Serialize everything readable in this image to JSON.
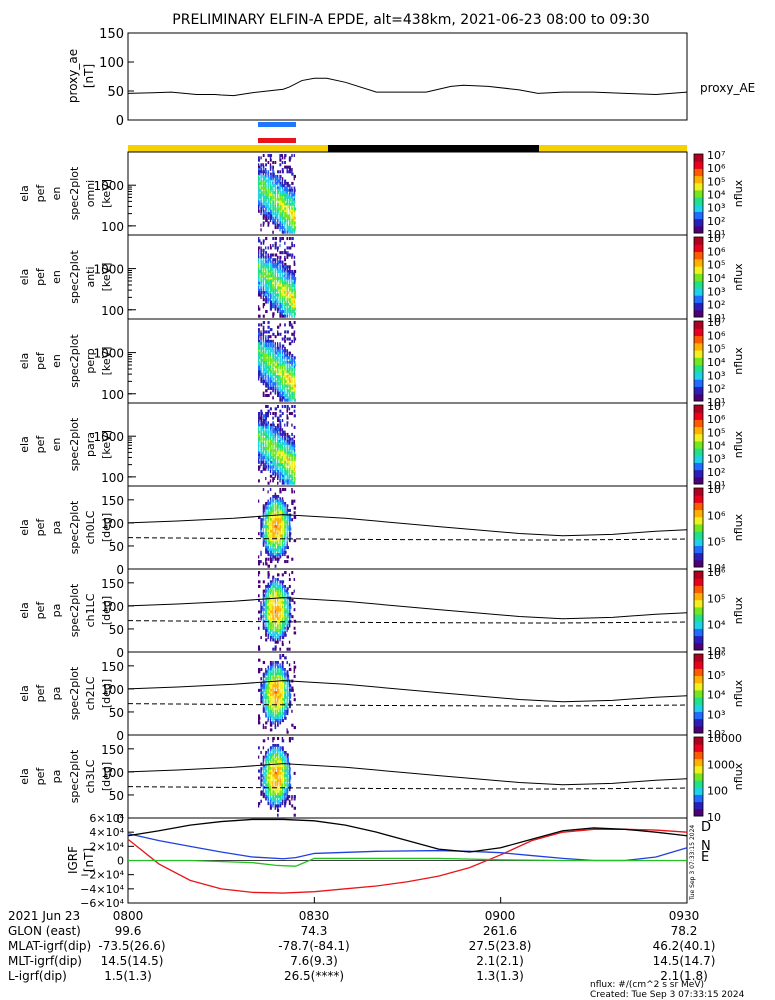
{
  "title": "PRELIMINARY ELFIN-A EPDE, alt=438km, 2021-06-23 08:00 to 09:30",
  "colors": {
    "orbit_yellow": "#f7d000",
    "orbit_black": "#000000",
    "bar_blue": "#1f77ff",
    "bar_red": "#e8141a",
    "grf_d": "#e8141a",
    "grf_n": "#1f3fe0",
    "grf_e": "#22c022"
  },
  "chart_data": [
    {
      "type": "line",
      "id": "ae",
      "ylabel": "proxy_ae\n[nT]",
      "legend": "proxy_AE",
      "ylim": [
        0,
        150
      ],
      "yticks": [
        "150",
        "100",
        "50",
        "0"
      ],
      "series": [
        {
          "name": "proxy_AE",
          "x": [
            0,
            4,
            7,
            11,
            14,
            15,
            17,
            20,
            25,
            26,
            28,
            30,
            32,
            35,
            40,
            43,
            48,
            52,
            54,
            58,
            63,
            66,
            70,
            75,
            80,
            85,
            90
          ],
          "y": [
            46,
            47,
            48,
            44,
            44,
            43,
            42,
            47,
            53,
            57,
            68,
            72,
            72,
            65,
            48,
            48,
            48,
            58,
            60,
            58,
            52,
            46,
            48,
            48,
            46,
            44,
            48
          ]
        }
      ]
    },
    {
      "type": "heatmap",
      "id": "omni",
      "ylabel": [
        "ela",
        "pef",
        "en",
        "spec2plot",
        "omni",
        "[keV]"
      ],
      "yticks": [
        "1000",
        "100"
      ],
      "cbar_ticks": [
        "10⁷",
        "10⁶",
        "10⁵",
        "10⁴",
        "10³",
        "10²",
        "10¹"
      ],
      "cbar_label": "nflux"
    },
    {
      "type": "heatmap",
      "id": "anti",
      "ylabel": [
        "ela",
        "pef",
        "en",
        "spec2plot",
        "anti",
        "[keV]"
      ],
      "yticks": [
        "1000",
        "100"
      ],
      "cbar_ticks": [
        "10⁷",
        "10⁶",
        "10⁵",
        "10⁴",
        "10³",
        "10²",
        "10¹"
      ],
      "cbar_label": "nflux"
    },
    {
      "type": "heatmap",
      "id": "perp",
      "ylabel": [
        "ela",
        "pef",
        "en",
        "spec2plot",
        "perp",
        "[keV]"
      ],
      "yticks": [
        "1000",
        "100"
      ],
      "cbar_ticks": [
        "10⁷",
        "10⁶",
        "10⁵",
        "10⁴",
        "10³",
        "10²",
        "10¹"
      ],
      "cbar_label": "nflux"
    },
    {
      "type": "heatmap",
      "id": "para",
      "ylabel": [
        "ela",
        "pef",
        "en",
        "spec2plot",
        "para",
        "[keV]"
      ],
      "yticks": [
        "1000",
        "100"
      ],
      "cbar_ticks": [
        "10⁷",
        "10⁶",
        "10⁵",
        "10⁴",
        "10³",
        "10²",
        "10¹"
      ],
      "cbar_label": "nflux"
    },
    {
      "type": "heatmap",
      "id": "ch0",
      "ylabel": [
        "ela",
        "pef",
        "pa",
        "spec2plot",
        "ch0LC",
        "[deg]"
      ],
      "yticks": [
        "150",
        "100",
        "50",
        "0"
      ],
      "cbar_ticks": [
        "10⁷",
        "10⁶",
        "10⁵",
        "10⁴"
      ],
      "cbar_label": "nflux"
    },
    {
      "type": "heatmap",
      "id": "ch1",
      "ylabel": [
        "ela",
        "pef",
        "pa",
        "spec2plot",
        "ch1LC",
        "[deg]"
      ],
      "yticks": [
        "150",
        "100",
        "50",
        "0"
      ],
      "cbar_ticks": [
        "10⁶",
        "10⁵",
        "10⁴",
        "10³"
      ],
      "cbar_label": "nflux"
    },
    {
      "type": "heatmap",
      "id": "ch2",
      "ylabel": [
        "ela",
        "pef",
        "pa",
        "spec2plot",
        "ch2LC",
        "[deg]"
      ],
      "yticks": [
        "150",
        "100",
        "50",
        "0"
      ],
      "cbar_ticks": [
        "10⁶",
        "10⁵",
        "10⁴",
        "10³",
        "10²"
      ],
      "cbar_label": "nflux"
    },
    {
      "type": "heatmap",
      "id": "ch3",
      "ylabel": [
        "ela",
        "pef",
        "pa",
        "spec2plot",
        "ch3LC",
        "[deg]"
      ],
      "yticks": [
        "150",
        "100",
        "50",
        "0"
      ],
      "cbar_ticks": [
        "10000",
        "1000",
        "100",
        "10"
      ],
      "cbar_label": "nflux"
    },
    {
      "type": "line",
      "id": "grf",
      "ylabel": "IGRF\n[nT]",
      "ylim": [
        -60000,
        60000
      ],
      "yticks": [
        "6×10⁴",
        "4×10⁴",
        "2×10⁴",
        "0",
        "−2×10⁴",
        "−4×10⁴",
        "−6×10⁴"
      ],
      "series": [
        {
          "name": "D",
          "color": "#e8141a",
          "x": [
            0,
            5,
            10,
            15,
            20,
            25,
            30,
            35,
            40,
            45,
            50,
            55,
            60,
            65,
            70,
            75,
            80,
            85,
            90
          ],
          "y": [
            30000,
            -5000,
            -28000,
            -40000,
            -45000,
            -46000,
            -44000,
            -40000,
            -36000,
            -30000,
            -22000,
            -10000,
            8000,
            28000,
            40000,
            44000,
            44000,
            43000,
            40000
          ]
        },
        {
          "name": "N",
          "color": "#1f3fe0",
          "x": [
            0,
            5,
            10,
            15,
            20,
            25,
            27,
            30,
            40,
            50,
            55,
            60,
            65,
            70,
            75,
            80,
            85,
            90
          ],
          "y": [
            38000,
            28000,
            20000,
            12000,
            5000,
            2500,
            4000,
            10000,
            13000,
            14000,
            13000,
            11000,
            7000,
            3000,
            0,
            0,
            5000,
            18000
          ]
        },
        {
          "name": "E",
          "color": "#22c022",
          "x": [
            0,
            10,
            20,
            24,
            27,
            30,
            40,
            50,
            60,
            70,
            80,
            90
          ],
          "y": [
            0,
            0,
            -3000,
            -7000,
            -8000,
            3000,
            3000,
            3000,
            1000,
            0,
            0,
            0
          ]
        },
        {
          "name": "",
          "color": "#000000",
          "x": [
            0,
            5,
            10,
            15,
            20,
            25,
            30,
            35,
            40,
            45,
            50,
            55,
            60,
            65,
            70,
            75,
            80,
            85,
            90
          ],
          "y": [
            35000,
            42000,
            50000,
            55000,
            58000,
            58000,
            56000,
            50000,
            40000,
            28000,
            16000,
            12000,
            18000,
            30000,
            42000,
            46000,
            44000,
            40000,
            35000
          ]
        }
      ]
    }
  ],
  "pa_lines": {
    "solid": {
      "x": [
        0,
        8,
        17,
        25,
        35,
        50,
        63,
        70,
        78,
        85,
        90
      ],
      "y": [
        100,
        104,
        110,
        118,
        110,
        92,
        77,
        72,
        75,
        82,
        85
      ]
    },
    "dashed": {
      "x": [
        0,
        20,
        40,
        63,
        70,
        80,
        90
      ],
      "y": [
        68,
        66,
        64,
        63,
        63,
        64,
        65
      ]
    }
  },
  "grf_side_labels": [
    "D",
    "N",
    "E"
  ],
  "xaxis": {
    "ticks": [
      "0800",
      "0830",
      "0900",
      "0930"
    ]
  },
  "footer": {
    "rows": [
      {
        "label": "2021 Jun 23",
        "values": [
          "0800",
          "0830",
          "0900",
          "0930"
        ]
      },
      {
        "label": "GLON (east)",
        "values": [
          "99.6",
          "74.3",
          "261.6",
          "78.2"
        ]
      },
      {
        "label": "MLAT-igrf(dip)",
        "values": [
          "-73.5(26.6)",
          "-78.7(-84.1)",
          "27.5(23.8)",
          "46.2(40.1)"
        ]
      },
      {
        "label": "MLT-igrf(dip)",
        "values": [
          "14.5(14.5)",
          "7.6(9.3)",
          "2.1(2.1)",
          "14.5(14.7)"
        ]
      },
      {
        "label": "L-igrf(dip)",
        "values": [
          "1.5(1.3)",
          "26.5(****)",
          "1.3(1.3)",
          "2.1(1.8)"
        ]
      }
    ],
    "note1": "nflux: #/(cm^2 s sr MeV)",
    "note2": "Created: Tue Sep  3 07:33:15 2024",
    "vertical_stamp": "Tue Sep  3 07:33:15 2024"
  }
}
